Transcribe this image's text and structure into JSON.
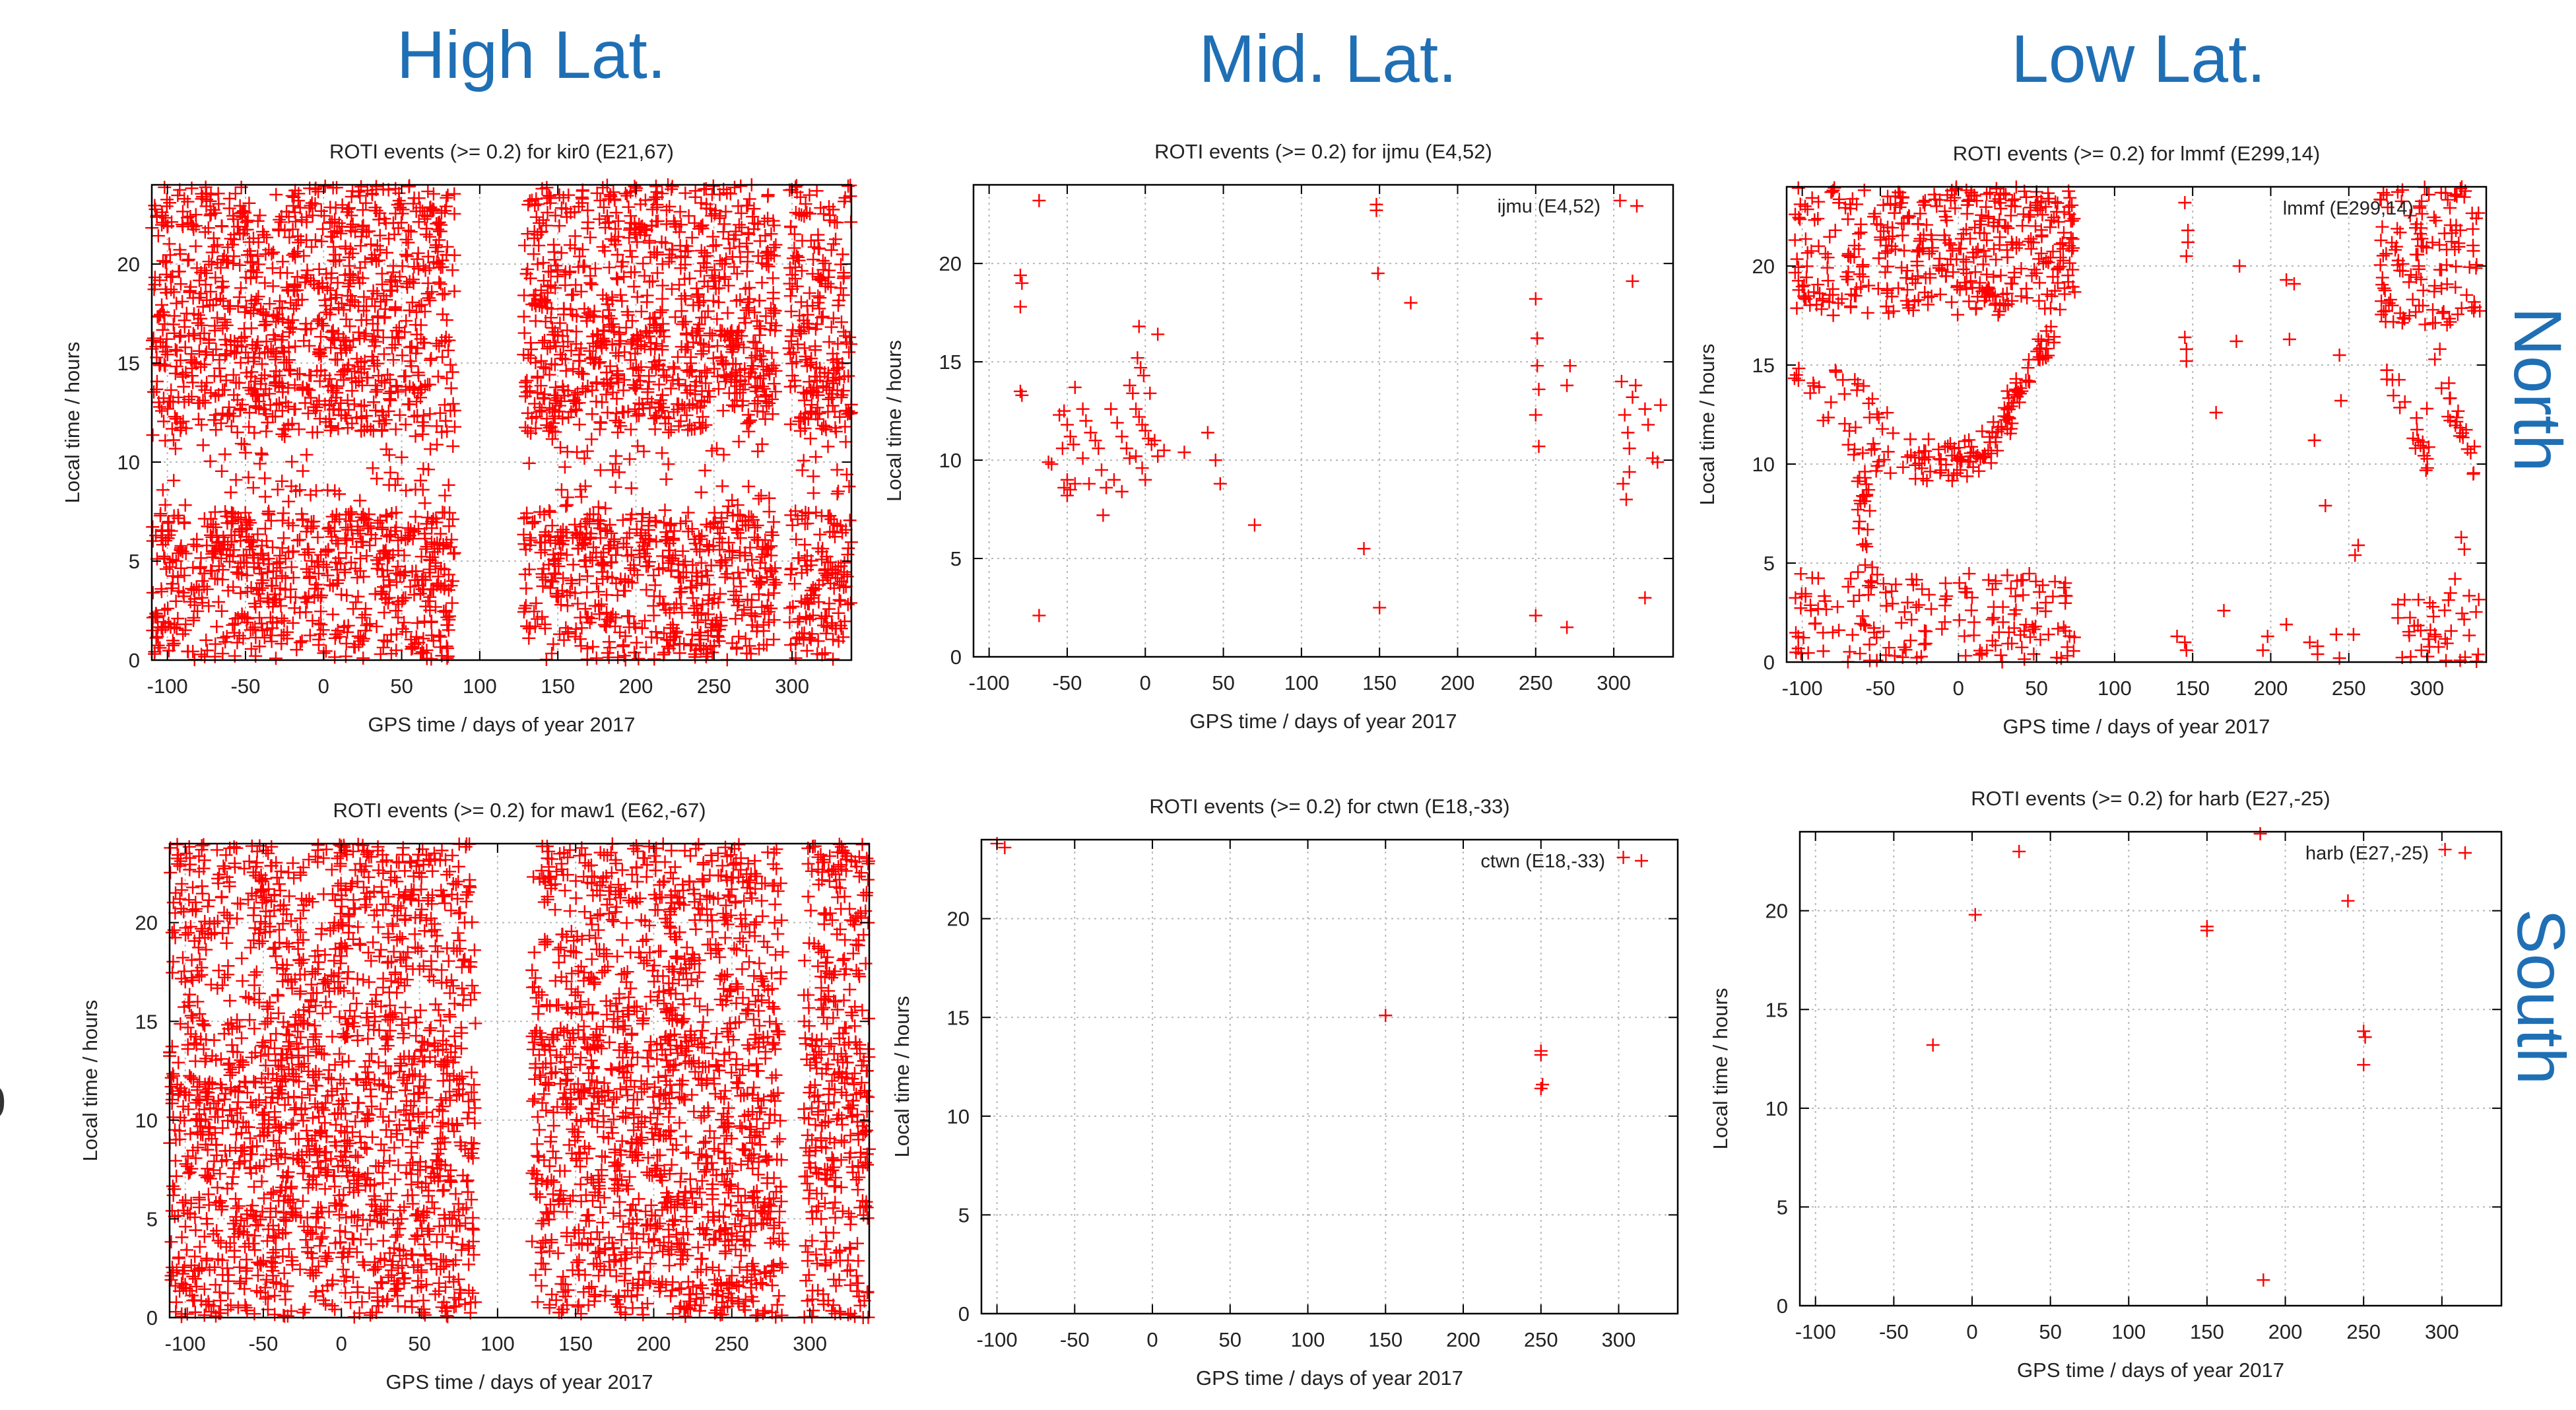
{
  "headings": {
    "high_lat": "High Lat.",
    "mid_lat": "Mid. Lat.",
    "low_lat": "Low Lat.",
    "north": "North",
    "south": "South"
  },
  "colors": {
    "heading": "#1f6fb5",
    "marker": "#ff0000",
    "grid": "#b8b8b8",
    "text": "#222222"
  },
  "chart_data": [
    {
      "type": "scatter",
      "title": "ROTI events (>= 0.2) for kir0 (E21,67)",
      "xlabel": "GPS time / days of year 2017",
      "ylabel": "Local time / hours",
      "legend": "",
      "xlim": [
        -110,
        338
      ],
      "ylim": [
        0,
        24
      ],
      "xticks": [
        -100,
        -50,
        0,
        50,
        100,
        150,
        200,
        250,
        300
      ],
      "yticks": [
        0,
        5,
        10,
        15,
        20
      ],
      "marker": "+",
      "density": "dense",
      "data_gaps_x": [
        [
          84,
          128
        ],
        [
          290,
          298
        ]
      ],
      "x_ranges": [
        [
          -110,
          84
        ],
        [
          128,
          290
        ],
        [
          298,
          338
        ]
      ],
      "series": [
        {
          "points": []
        }
      ]
    },
    {
      "type": "scatter",
      "title": "ROTI events (>= 0.2) for ijmu (E4,52)",
      "xlabel": "GPS time / days of year 2017",
      "ylabel": "Local time / hours",
      "legend": "ijmu (E4,52)",
      "xlim": [
        -110,
        338
      ],
      "ylim": [
        0,
        24
      ],
      "xticks": [
        -100,
        -50,
        0,
        50,
        100,
        150,
        200,
        250,
        300
      ],
      "yticks": [
        0,
        5,
        10,
        15,
        20
      ],
      "marker": "+",
      "density": "sparse",
      "series": [
        {
          "points": [
            [
              -68,
              23.2
            ],
            [
              -80,
              19.4
            ],
            [
              -79,
              19.0
            ],
            [
              -80,
              17.8
            ],
            [
              -80,
              13.5
            ],
            [
              -79,
              13.3
            ],
            [
              -62,
              9.9
            ],
            [
              -60,
              9.8
            ],
            [
              -55,
              12.3
            ],
            [
              -52,
              12.5
            ],
            [
              -50,
              11.8
            ],
            [
              -48,
              11.2
            ],
            [
              -46,
              10.8
            ],
            [
              -53,
              10.6
            ],
            [
              -45,
              13.7
            ],
            [
              -50,
              9.0
            ],
            [
              -48,
              8.5
            ],
            [
              -52,
              8.6
            ],
            [
              -50,
              8.2
            ],
            [
              -45,
              8.8
            ],
            [
              -40,
              12.6
            ],
            [
              -38,
              12.0
            ],
            [
              -35,
              11.4
            ],
            [
              -32,
              11.0
            ],
            [
              -30,
              10.6
            ],
            [
              -28,
              9.5
            ],
            [
              -25,
              8.6
            ],
            [
              -40,
              10.1
            ],
            [
              -36,
              8.8
            ],
            [
              -27,
              7.2
            ],
            [
              -22,
              12.6
            ],
            [
              -18,
              11.9
            ],
            [
              -15,
              11.2
            ],
            [
              -12,
              10.6
            ],
            [
              -10,
              10.1
            ],
            [
              -20,
              9.0
            ],
            [
              -15,
              8.4
            ],
            [
              -10,
              13.8
            ],
            [
              -8,
              13.4
            ],
            [
              -5,
              15.2
            ],
            [
              -3,
              14.7
            ],
            [
              -1,
              14.3
            ],
            [
              -6,
              12.6
            ],
            [
              -4,
              12.2
            ],
            [
              -2,
              11.8
            ],
            [
              0,
              11.5
            ],
            [
              2,
              11.1
            ],
            [
              4,
              10.8
            ],
            [
              -6,
              10.2
            ],
            [
              -2,
              9.6
            ],
            [
              0,
              9.0
            ],
            [
              -4,
              16.8
            ],
            [
              3,
              13.4
            ],
            [
              6,
              11.0
            ],
            [
              8,
              10.2
            ],
            [
              12,
              10.5
            ],
            [
              8,
              16.4
            ],
            [
              25,
              10.4
            ],
            [
              40,
              11.4
            ],
            [
              45,
              10.0
            ],
            [
              48,
              8.8
            ],
            [
              70,
              6.7
            ],
            [
              -68,
              2.1
            ],
            [
              140,
              5.5
            ],
            [
              148,
              23.0
            ],
            [
              148,
              22.7
            ],
            [
              149,
              19.5
            ],
            [
              170,
              18.0
            ],
            [
              150,
              2.5
            ],
            [
              250,
              18.2
            ],
            [
              251,
              16.2
            ],
            [
              251,
              14.8
            ],
            [
              252,
              13.6
            ],
            [
              250,
              12.3
            ],
            [
              252,
              10.7
            ],
            [
              250,
              2.1
            ],
            [
              270,
              1.5
            ],
            [
              272,
              14.8
            ],
            [
              270,
              13.8
            ],
            [
              304,
              23.2
            ],
            [
              305,
              14.0
            ],
            [
              307,
              12.3
            ],
            [
              309,
              11.4
            ],
            [
              310,
              10.6
            ],
            [
              310,
              9.4
            ],
            [
              306,
              8.8
            ],
            [
              308,
              8.0
            ],
            [
              312,
              13.2
            ],
            [
              314,
              13.8
            ],
            [
              312,
              19.1
            ],
            [
              320,
              12.6
            ],
            [
              322,
              11.8
            ],
            [
              325,
              10.1
            ],
            [
              328,
              9.9
            ],
            [
              320,
              3.0
            ],
            [
              330,
              12.8
            ]
          ]
        }
      ]
    },
    {
      "type": "scatter",
      "title": "ROTI events (>= 0.2) for lmmf (E299,14)",
      "xlabel": "GPS time / days of year 2017",
      "ylabel": "Local time / hours",
      "legend": "lmmf (E299,14)",
      "xlim": [
        -110,
        338
      ],
      "ylim": [
        0,
        24
      ],
      "xticks": [
        -100,
        -50,
        0,
        50,
        100,
        150,
        200,
        250,
        300
      ],
      "yticks": [
        0,
        5,
        10,
        15,
        20
      ],
      "marker": "+",
      "density": "medium",
      "clusters": [
        {
          "x": [
            -105,
            75
          ],
          "y": [
            17.5,
            24
          ],
          "n": 420
        },
        {
          "x": [
            -105,
            75
          ],
          "y": [
            0,
            4.5
          ],
          "n": 170
        },
        {
          "x": [
            -65,
            -55
          ],
          "y": [
            4.5,
            10
          ],
          "n": 24
        },
        {
          "x": [
            270,
            335
          ],
          "y": [
            17,
            24
          ],
          "n": 130
        },
        {
          "x": [
            280,
            335
          ],
          "y": [
            0,
            3.5
          ],
          "n": 40
        }
      ],
      "arcs": [
        {
          "points": [
            [
              -105,
              15
            ],
            [
              -60,
              10.5
            ],
            [
              -10,
              9.5
            ],
            [
              20,
              10.5
            ],
            [
              40,
              13.5
            ],
            [
              62,
              17
            ]
          ],
          "n": 110
        },
        {
          "points": [
            [
              -78,
              14.5
            ],
            [
              -30,
              10.5
            ],
            [
              15,
              11
            ],
            [
              45,
              14.5
            ]
          ],
          "n": 60
        },
        {
          "points": [
            [
              275,
              15
            ],
            [
              290,
              12
            ],
            [
              300,
              10
            ]
          ],
          "n": 20
        },
        {
          "points": [
            [
              305,
              15.5
            ],
            [
              320,
              12
            ],
            [
              330,
              10
            ]
          ],
          "n": 22
        }
      ],
      "series": [
        {
          "points": [
            [
              145,
              23.2
            ],
            [
              147,
              21.8
            ],
            [
              147,
              21.2
            ],
            [
              146,
              20.5
            ],
            [
              145,
              16.4
            ],
            [
              146,
              15.8
            ],
            [
              146,
              15.2
            ],
            [
              145,
              1.0
            ],
            [
              146,
              0.6
            ],
            [
              180,
              20.0
            ],
            [
              178,
              16.2
            ],
            [
              165,
              12.6
            ],
            [
              210,
              19.3
            ],
            [
              215,
              19.1
            ],
            [
              212,
              16.3
            ],
            [
              225,
              1.0
            ],
            [
              228,
              11.2
            ],
            [
              235,
              7.9
            ],
            [
              244,
              15.5
            ],
            [
              245,
              13.2
            ],
            [
              242,
              1.4
            ],
            [
              254,
              5.4
            ],
            [
              256,
              5.9
            ],
            [
              253,
              1.4
            ],
            [
              244,
              0.2
            ],
            [
              300,
              12.8
            ],
            [
              318,
              4.2
            ],
            [
              322,
              6.3
            ],
            [
              324,
              5.7
            ],
            [
              140,
              1.3
            ],
            [
              170,
              2.6
            ],
            [
              198,
              1.3
            ],
            [
              210,
              1.9
            ],
            [
              230,
              0.8
            ],
            [
              230,
              0.4
            ],
            [
              195,
              0.6
            ]
          ]
        }
      ]
    },
    {
      "type": "scatter",
      "title": "ROTI events (>= 0.2) for maw1 (E62,-67)",
      "xlabel": "GPS time / days of year 2017",
      "ylabel": "Local time / hours",
      "legend": "",
      "xlim": [
        -110,
        338
      ],
      "ylim": [
        0,
        24
      ],
      "xticks": [
        -100,
        -50,
        0,
        50,
        100,
        150,
        200,
        250,
        300
      ],
      "yticks": [
        0,
        5,
        10,
        15,
        20
      ],
      "marker": "+",
      "density": "dense",
      "data_gaps_x": [
        [
          86,
          122
        ],
        [
          283,
          296
        ]
      ],
      "x_ranges": [
        [
          -110,
          86
        ],
        [
          122,
          283
        ],
        [
          296,
          338
        ]
      ],
      "series": [
        {
          "points": []
        }
      ]
    },
    {
      "type": "scatter",
      "title": "ROTI events (>= 0.2) for ctwn (E18,-33)",
      "xlabel": "GPS time / days of year 2017",
      "ylabel": "Local time / hours",
      "legend": "ctwn (E18,-33)",
      "xlim": [
        -110,
        338
      ],
      "ylim": [
        0,
        24
      ],
      "xticks": [
        -100,
        -50,
        0,
        50,
        100,
        150,
        200,
        250,
        300
      ],
      "yticks": [
        0,
        5,
        10,
        15,
        20
      ],
      "marker": "+",
      "density": "sparse",
      "series": [
        {
          "points": [
            [
              -100,
              23.8
            ],
            [
              -95,
              23.6
            ],
            [
              150,
              15.1
            ],
            [
              250,
              13.3
            ],
            [
              250,
              13.1
            ],
            [
              251,
              11.6
            ],
            [
              250,
              11.4
            ],
            [
              303,
              23.1
            ]
          ]
        }
      ]
    },
    {
      "type": "scatter",
      "title": "ROTI events (>= 0.2) for harb (E27,-25)",
      "xlabel": "GPS time / days of year 2017",
      "ylabel": "Local time / hours",
      "legend": "harb (E27,-25)",
      "xlim": [
        -110,
        338
      ],
      "ylim": [
        0,
        24
      ],
      "xticks": [
        -100,
        -50,
        0,
        50,
        100,
        150,
        200,
        250,
        300
      ],
      "yticks": [
        0,
        5,
        10,
        15,
        20
      ],
      "marker": "+",
      "density": "sparse",
      "series": [
        {
          "points": [
            [
              -25,
              13.2
            ],
            [
              2,
              19.8
            ],
            [
              30,
              23.0
            ],
            [
              150,
              19.2
            ],
            [
              150,
              19.0
            ],
            [
              184,
              23.9
            ],
            [
              186,
              1.3
            ],
            [
              240,
              20.5
            ],
            [
              250,
              13.9
            ],
            [
              251,
              13.6
            ],
            [
              250,
              12.2
            ],
            [
              302,
              23.1
            ]
          ]
        }
      ]
    }
  ]
}
